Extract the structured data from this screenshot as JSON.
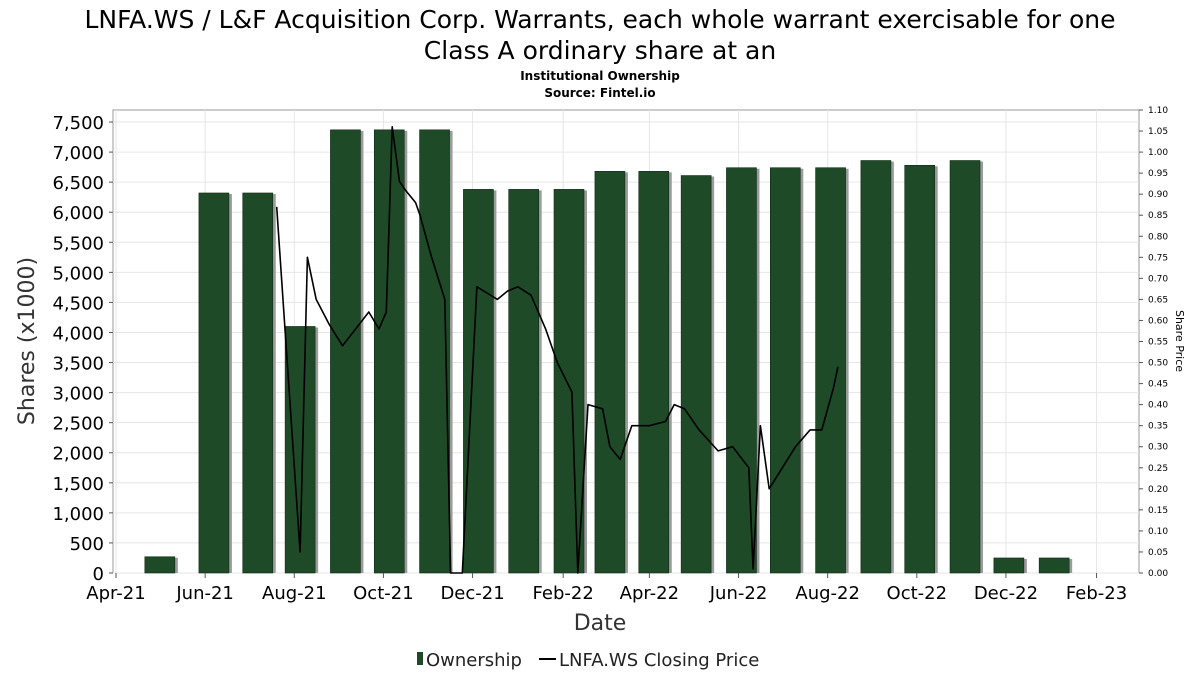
{
  "chart_data": {
    "type": "bar",
    "title_line1": "LNFA.WS / L&F Acquisition Corp. Warrants, each whole warrant exercisable for one",
    "title_line2": "Class A ordinary share at an",
    "subtitle": "Institutional Ownership",
    "source": "Source: Fintel.io",
    "xlabel": "Date",
    "ylabel": "Shares (x1000)",
    "y2label": "Share Price",
    "ylim": [
      0,
      7700
    ],
    "y2lim": [
      0,
      1.1
    ],
    "x_range": [
      "2021-04-01",
      "2023-02-28"
    ],
    "y_ticks": [
      "0",
      "500",
      "1,000",
      "1,500",
      "2,000",
      "2,500",
      "3,000",
      "3,500",
      "4,000",
      "4,500",
      "5,000",
      "5,500",
      "6,000",
      "6,500",
      "7,000",
      "7,500"
    ],
    "y2_ticks": [
      "0.00",
      "0.05",
      "0.10",
      "0.15",
      "0.20",
      "0.25",
      "0.30",
      "0.35",
      "0.40",
      "0.45",
      "0.50",
      "0.55",
      "0.60",
      "0.65",
      "0.70",
      "0.75",
      "0.80",
      "0.85",
      "0.90",
      "0.95",
      "1.00",
      "1.05",
      "1.10"
    ],
    "x_ticks": [
      {
        "label": "Apr-21",
        "date": "2021-04-01"
      },
      {
        "label": "Jun-21",
        "date": "2021-06-01"
      },
      {
        "label": "Aug-21",
        "date": "2021-08-01"
      },
      {
        "label": "Oct-21",
        "date": "2021-10-01"
      },
      {
        "label": "Dec-21",
        "date": "2021-12-01"
      },
      {
        "label": "Feb-22",
        "date": "2022-02-01"
      },
      {
        "label": "Apr-22",
        "date": "2022-04-01"
      },
      {
        "label": "Jun-22",
        "date": "2022-06-01"
      },
      {
        "label": "Aug-22",
        "date": "2022-08-01"
      },
      {
        "label": "Oct-22",
        "date": "2022-10-01"
      },
      {
        "label": "Dec-22",
        "date": "2022-12-01"
      },
      {
        "label": "Feb-23",
        "date": "2023-02-01"
      }
    ],
    "series": [
      {
        "name": "Ownership",
        "type": "bar",
        "color": "#1e4a28",
        "points": [
          {
            "date": "2021-05-01",
            "value": 270
          },
          {
            "date": "2021-06-07",
            "value": 6320
          },
          {
            "date": "2021-07-07",
            "value": 6320
          },
          {
            "date": "2021-08-05",
            "value": 4100
          },
          {
            "date": "2021-09-05",
            "value": 7370
          },
          {
            "date": "2021-10-05",
            "value": 7370
          },
          {
            "date": "2021-11-05",
            "value": 7370
          },
          {
            "date": "2021-12-05",
            "value": 6380
          },
          {
            "date": "2022-01-05",
            "value": 6380
          },
          {
            "date": "2022-02-05",
            "value": 6380
          },
          {
            "date": "2022-03-05",
            "value": 6680
          },
          {
            "date": "2022-04-04",
            "value": 6680
          },
          {
            "date": "2022-05-03",
            "value": 6610
          },
          {
            "date": "2022-06-03",
            "value": 6740
          },
          {
            "date": "2022-07-03",
            "value": 6740
          },
          {
            "date": "2022-08-03",
            "value": 6740
          },
          {
            "date": "2022-09-03",
            "value": 6860
          },
          {
            "date": "2022-10-03",
            "value": 6780
          },
          {
            "date": "2022-11-03",
            "value": 6860
          },
          {
            "date": "2022-12-03",
            "value": 250
          },
          {
            "date": "2023-01-03",
            "value": 250
          }
        ]
      },
      {
        "name": "LNFA.WS Closing Price",
        "type": "line",
        "color": "#000000",
        "points": [
          {
            "date": "2021-07-20",
            "value": 0.87
          },
          {
            "date": "2021-08-05",
            "value": 0.05
          },
          {
            "date": "2021-08-10",
            "value": 0.75
          },
          {
            "date": "2021-08-16",
            "value": 0.65
          },
          {
            "date": "2021-08-25",
            "value": 0.59
          },
          {
            "date": "2021-09-03",
            "value": 0.54
          },
          {
            "date": "2021-09-12",
            "value": 0.58
          },
          {
            "date": "2021-09-21",
            "value": 0.62
          },
          {
            "date": "2021-09-28",
            "value": 0.58
          },
          {
            "date": "2021-10-03",
            "value": 0.62
          },
          {
            "date": "2021-10-07",
            "value": 1.06
          },
          {
            "date": "2021-10-12",
            "value": 0.93
          },
          {
            "date": "2021-10-16",
            "value": 0.91
          },
          {
            "date": "2021-10-23",
            "value": 0.88
          },
          {
            "date": "2021-10-26",
            "value": 0.85
          },
          {
            "date": "2021-11-03",
            "value": 0.75
          },
          {
            "date": "2021-11-12",
            "value": 0.65
          },
          {
            "date": "2021-11-16",
            "value": 0.0
          },
          {
            "date": "2021-11-24",
            "value": 0.0
          },
          {
            "date": "2021-12-04",
            "value": 0.68
          },
          {
            "date": "2021-12-18",
            "value": 0.65
          },
          {
            "date": "2021-12-25",
            "value": 0.67
          },
          {
            "date": "2022-01-01",
            "value": 0.68
          },
          {
            "date": "2022-01-10",
            "value": 0.66
          },
          {
            "date": "2022-01-20",
            "value": 0.58
          },
          {
            "date": "2022-01-28",
            "value": 0.5
          },
          {
            "date": "2022-02-07",
            "value": 0.43
          },
          {
            "date": "2022-02-11",
            "value": 0.0
          },
          {
            "date": "2022-02-18",
            "value": 0.4
          },
          {
            "date": "2022-02-28",
            "value": 0.39
          },
          {
            "date": "2022-03-05",
            "value": 0.3
          },
          {
            "date": "2022-03-12",
            "value": 0.27
          },
          {
            "date": "2022-03-20",
            "value": 0.35
          },
          {
            "date": "2022-04-01",
            "value": 0.35
          },
          {
            "date": "2022-04-12",
            "value": 0.36
          },
          {
            "date": "2022-04-18",
            "value": 0.4
          },
          {
            "date": "2022-04-25",
            "value": 0.39
          },
          {
            "date": "2022-05-05",
            "value": 0.34
          },
          {
            "date": "2022-05-18",
            "value": 0.29
          },
          {
            "date": "2022-05-28",
            "value": 0.3
          },
          {
            "date": "2022-06-08",
            "value": 0.25
          },
          {
            "date": "2022-06-11",
            "value": 0.01
          },
          {
            "date": "2022-06-16",
            "value": 0.35
          },
          {
            "date": "2022-06-22",
            "value": 0.2
          },
          {
            "date": "2022-07-10",
            "value": 0.3
          },
          {
            "date": "2022-07-20",
            "value": 0.34
          },
          {
            "date": "2022-07-28",
            "value": 0.34
          },
          {
            "date": "2022-08-05",
            "value": 0.44
          },
          {
            "date": "2022-08-08",
            "value": 0.49
          }
        ]
      }
    ],
    "legend": {
      "position": "bottom-center",
      "items": [
        "Ownership",
        "LNFA.WS Closing Price"
      ]
    }
  }
}
